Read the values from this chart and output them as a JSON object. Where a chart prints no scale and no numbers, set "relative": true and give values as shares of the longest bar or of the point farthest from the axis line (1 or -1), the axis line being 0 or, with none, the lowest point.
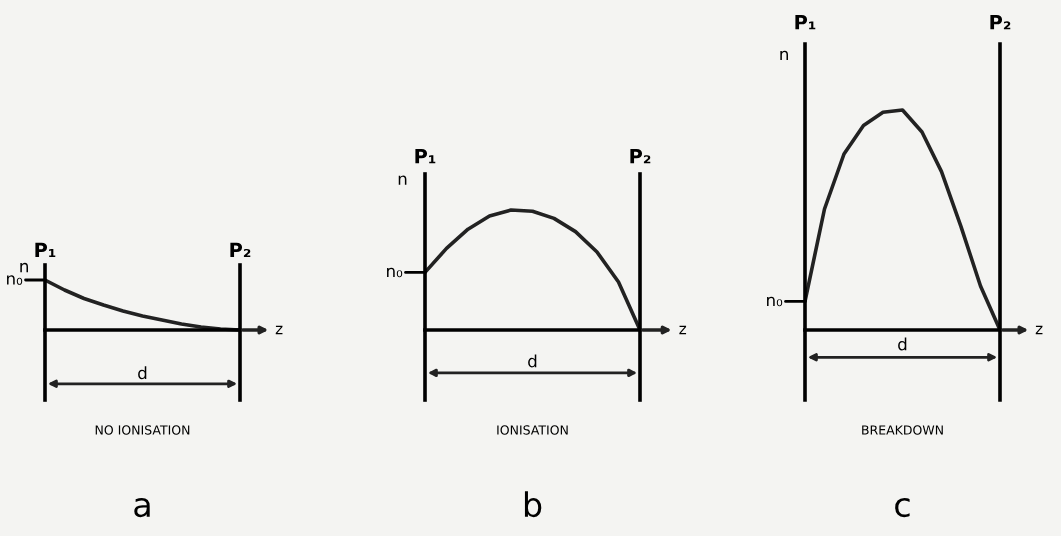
{
  "chart_data": [
    {
      "type": "line",
      "title": "a",
      "xlabel": "NO IONISATION",
      "relative": true,
      "categories": [
        null,
        null,
        null,
        null,
        null,
        null,
        null,
        null,
        null,
        null,
        null
      ],
      "series": [
        {
          "color": "#222222",
          "values": [
            1,
            0.8,
            0.63,
            0.5,
            0.38,
            0.28,
            0.2,
            0.12,
            0.06,
            0.02,
            0
          ]
        }
      ],
      "annotations": [
        "P₁",
        "P₂",
        "n",
        "n₀",
        "z",
        "d"
      ]
    },
    {
      "type": "line",
      "title": "b",
      "xlabel": "IONISATION",
      "relative": true,
      "categories": [
        null,
        null,
        null,
        null,
        null,
        null,
        null,
        null,
        null,
        null,
        null
      ],
      "series": [
        {
          "color": "#222222",
          "values": [
            0.48,
            0.68,
            0.84,
            0.95,
            1,
            0.99,
            0.93,
            0.82,
            0.65,
            0.4,
            0
          ]
        }
      ],
      "annotations": [
        "P₁",
        "P₂",
        "n",
        "n₀",
        "z",
        "d"
      ]
    },
    {
      "type": "line",
      "title": "c",
      "xlabel": "BREAKDOWN",
      "relative": true,
      "categories": [
        null,
        null,
        null,
        null,
        null,
        null,
        null,
        null,
        null,
        null,
        null
      ],
      "series": [
        {
          "color": "#222222",
          "values": [
            0.13,
            0.55,
            0.8,
            0.93,
            0.99,
            1,
            0.9,
            0.72,
            0.47,
            0.2,
            0
          ]
        }
      ],
      "annotations": [
        "P₁",
        "P₂",
        "n",
        "n₀",
        "z",
        "d"
      ]
    }
  ]
}
